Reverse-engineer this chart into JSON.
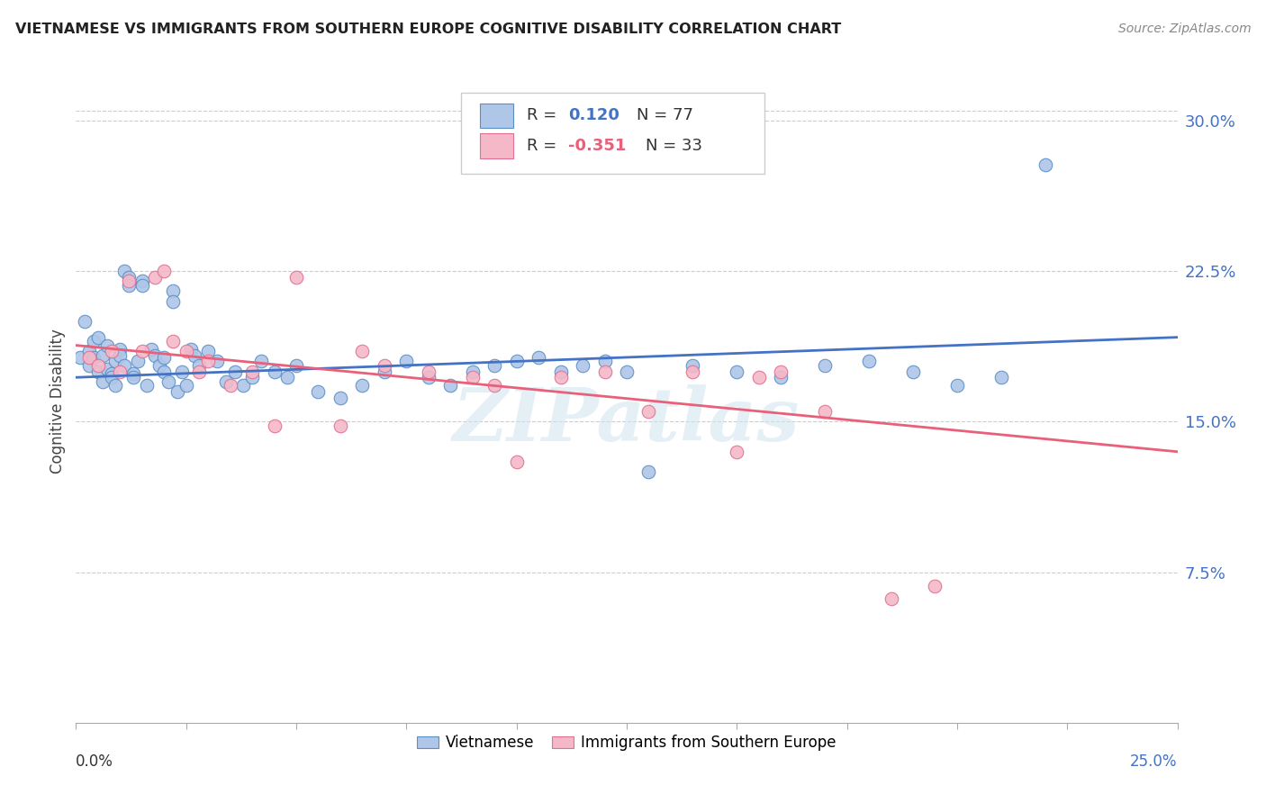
{
  "title": "VIETNAMESE VS IMMIGRANTS FROM SOUTHERN EUROPE COGNITIVE DISABILITY CORRELATION CHART",
  "source": "Source: ZipAtlas.com",
  "ylabel": "Cognitive Disability",
  "right_yticks": [
    0.075,
    0.15,
    0.225,
    0.3
  ],
  "right_yticklabels": [
    "7.5%",
    "15.0%",
    "22.5%",
    "30.0%"
  ],
  "xmin": 0.0,
  "xmax": 0.25,
  "ymin": 0.0,
  "ymax": 0.32,
  "watermark": "ZIPatlas",
  "series1_label": "Vietnamese",
  "series1_color": "#aec6e8",
  "series1_edge_color": "#5b8ec4",
  "series1_line_color": "#4472c4",
  "series1_R": 0.12,
  "series1_N": 77,
  "series2_label": "Immigrants from Southern Europe",
  "series2_color": "#f4b8c8",
  "series2_edge_color": "#e07090",
  "series2_line_color": "#e8607a",
  "series2_R": -0.351,
  "series2_N": 33,
  "blue_trend_x0": 0.0,
  "blue_trend_y0": 0.172,
  "blue_trend_x1": 0.25,
  "blue_trend_y1": 0.192,
  "pink_trend_x0": 0.0,
  "pink_trend_y0": 0.188,
  "pink_trend_x1": 0.25,
  "pink_trend_y1": 0.135,
  "scatter1_x": [
    0.001,
    0.002,
    0.003,
    0.003,
    0.004,
    0.004,
    0.005,
    0.005,
    0.006,
    0.006,
    0.007,
    0.007,
    0.008,
    0.008,
    0.009,
    0.009,
    0.01,
    0.01,
    0.011,
    0.011,
    0.012,
    0.012,
    0.013,
    0.013,
    0.014,
    0.015,
    0.015,
    0.016,
    0.017,
    0.018,
    0.019,
    0.02,
    0.02,
    0.021,
    0.022,
    0.022,
    0.023,
    0.024,
    0.025,
    0.026,
    0.027,
    0.028,
    0.03,
    0.032,
    0.034,
    0.036,
    0.038,
    0.04,
    0.042,
    0.045,
    0.048,
    0.05,
    0.055,
    0.06,
    0.065,
    0.07,
    0.075,
    0.08,
    0.085,
    0.09,
    0.095,
    0.1,
    0.105,
    0.11,
    0.115,
    0.12,
    0.125,
    0.13,
    0.14,
    0.15,
    0.16,
    0.17,
    0.18,
    0.19,
    0.2,
    0.21,
    0.22
  ],
  "scatter1_y": [
    0.182,
    0.2,
    0.185,
    0.178,
    0.19,
    0.182,
    0.175,
    0.192,
    0.17,
    0.183,
    0.176,
    0.188,
    0.174,
    0.172,
    0.18,
    0.168,
    0.186,
    0.183,
    0.178,
    0.225,
    0.222,
    0.218,
    0.174,
    0.172,
    0.18,
    0.22,
    0.218,
    0.168,
    0.186,
    0.183,
    0.178,
    0.182,
    0.175,
    0.17,
    0.215,
    0.21,
    0.165,
    0.175,
    0.168,
    0.186,
    0.183,
    0.178,
    0.185,
    0.18,
    0.17,
    0.175,
    0.168,
    0.172,
    0.18,
    0.175,
    0.172,
    0.178,
    0.165,
    0.162,
    0.168,
    0.175,
    0.18,
    0.172,
    0.168,
    0.175,
    0.178,
    0.18,
    0.182,
    0.175,
    0.178,
    0.18,
    0.175,
    0.125,
    0.178,
    0.175,
    0.172,
    0.178,
    0.18,
    0.175,
    0.168,
    0.172,
    0.278
  ],
  "scatter2_x": [
    0.003,
    0.005,
    0.008,
    0.01,
    0.012,
    0.015,
    0.018,
    0.02,
    0.022,
    0.025,
    0.028,
    0.03,
    0.035,
    0.04,
    0.045,
    0.05,
    0.06,
    0.065,
    0.07,
    0.08,
    0.09,
    0.095,
    0.1,
    0.11,
    0.12,
    0.13,
    0.14,
    0.15,
    0.155,
    0.16,
    0.17,
    0.185,
    0.195
  ],
  "scatter2_y": [
    0.182,
    0.178,
    0.185,
    0.175,
    0.22,
    0.185,
    0.222,
    0.225,
    0.19,
    0.185,
    0.175,
    0.18,
    0.168,
    0.175,
    0.148,
    0.222,
    0.148,
    0.185,
    0.178,
    0.175,
    0.172,
    0.168,
    0.13,
    0.172,
    0.175,
    0.155,
    0.175,
    0.135,
    0.172,
    0.175,
    0.155,
    0.062,
    0.068
  ]
}
